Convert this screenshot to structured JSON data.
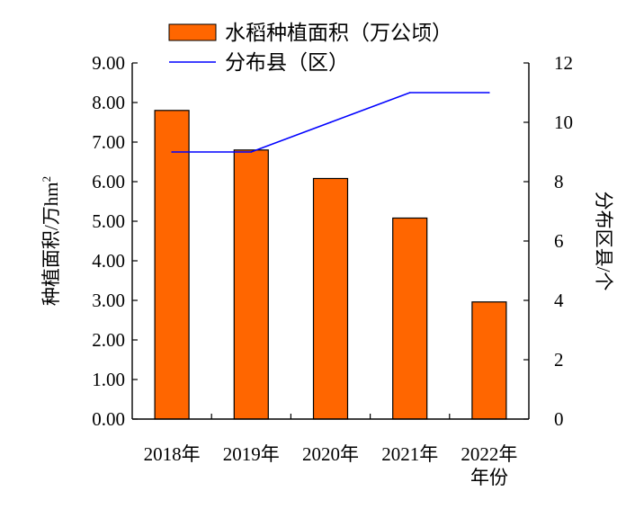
{
  "chart_data": {
    "type": "bar",
    "categories": [
      "2018年",
      "2019年",
      "2020年",
      "2021年",
      "2022年"
    ],
    "xlabel": "年份",
    "series": [
      {
        "name": "水稻种植面积（万公顷）",
        "type": "bar",
        "axis": "left",
        "color": "#FF6600",
        "values": [
          7.8,
          6.8,
          6.08,
          5.08,
          2.96
        ]
      },
      {
        "name": "分布县（区）",
        "type": "line",
        "axis": "right",
        "color": "#0000FF",
        "values": [
          9,
          9,
          10,
          11,
          11
        ]
      }
    ],
    "y_left": {
      "label": "种植面积/万hm",
      "label_sup": "2",
      "ylim": [
        0,
        9
      ],
      "ticks": [
        "0.00",
        "1.00",
        "2.00",
        "3.00",
        "4.00",
        "5.00",
        "6.00",
        "7.00",
        "8.00",
        "9.00"
      ]
    },
    "y_right": {
      "label": "分布区县/个",
      "ylim": [
        0,
        12
      ],
      "ticks": [
        "0",
        "2",
        "4",
        "6",
        "8",
        "10",
        "12"
      ]
    },
    "legend_position": "top",
    "grid": false
  }
}
